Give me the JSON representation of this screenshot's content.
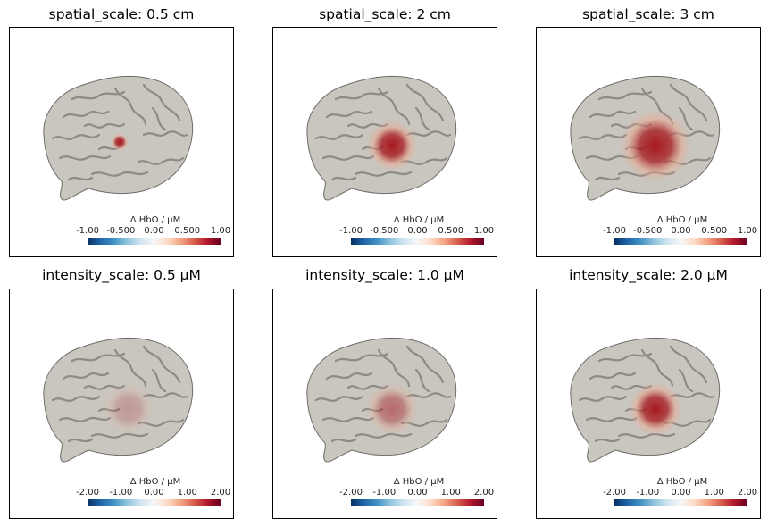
{
  "panels": [
    {
      "title": "spatial_scale: 0.5 cm",
      "cbar_label": "Δ HbO / μM",
      "ticks": [
        "-1.00",
        "-0.500",
        "0.00",
        "0.500",
        "1.00"
      ],
      "activation": {
        "cx": 123,
        "cy": 128,
        "r": 10,
        "intensity": 0.95
      }
    },
    {
      "title": "spatial_scale: 2 cm",
      "cbar_label": "Δ HbO / μM",
      "ticks": [
        "-1.00",
        "-0.500",
        "0.00",
        "0.500",
        "1.00"
      ],
      "activation": {
        "cx": 133,
        "cy": 132,
        "r": 28,
        "intensity": 0.95
      }
    },
    {
      "title": "spatial_scale: 3 cm",
      "cbar_label": "Δ HbO / μM",
      "ticks": [
        "-1.00",
        "-0.500",
        "0.00",
        "0.500",
        "1.00"
      ],
      "activation": {
        "cx": 133,
        "cy": 132,
        "r": 40,
        "intensity": 0.95
      }
    },
    {
      "title": "intensity_scale: 0.5 μM",
      "cbar_label": "Δ HbO / μM",
      "ticks": [
        "-2.00",
        "-1.00",
        "0.00",
        "1.00",
        "2.00"
      ],
      "activation": {
        "cx": 133,
        "cy": 134,
        "r": 30,
        "intensity": 0.25
      }
    },
    {
      "title": "intensity_scale: 1.0 μM",
      "cbar_label": "Δ HbO / μM",
      "ticks": [
        "-2.00",
        "-1.00",
        "0.00",
        "1.00",
        "2.00"
      ],
      "activation": {
        "cx": 133,
        "cy": 134,
        "r": 30,
        "intensity": 0.5
      }
    },
    {
      "title": "intensity_scale: 2.0 μM",
      "cbar_label": "Δ HbO / μM",
      "ticks": [
        "-2.00",
        "-1.00",
        "0.00",
        "1.00",
        "2.00"
      ],
      "activation": {
        "cx": 133,
        "cy": 134,
        "r": 30,
        "intensity": 0.95
      }
    }
  ],
  "colors": {
    "brain": "#c9c6c0",
    "sulcus": "#8e8b86",
    "hot": "#a50f15",
    "warm": "#e9a88f",
    "edge": "#6f6c68"
  }
}
